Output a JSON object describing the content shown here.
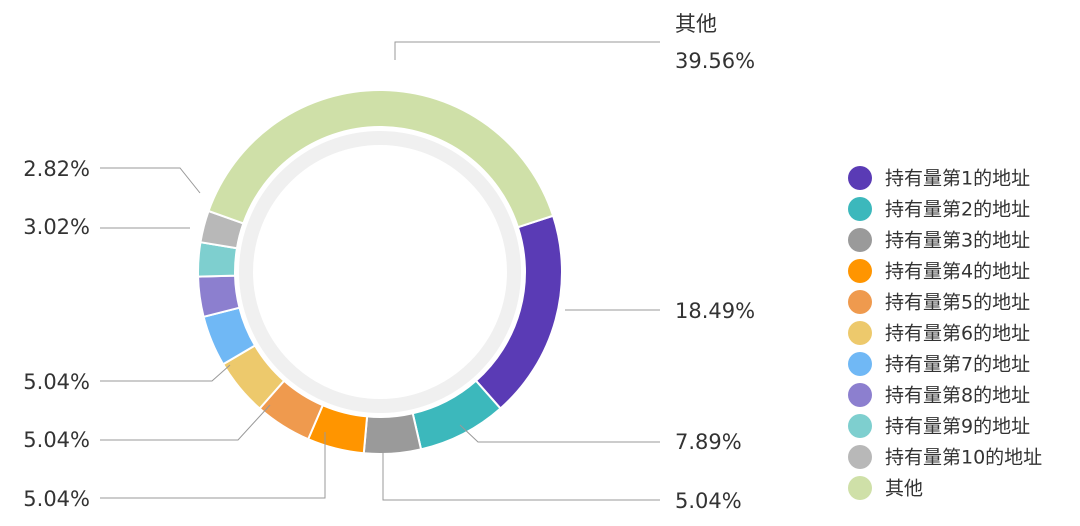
{
  "chart_data": {
    "type": "pie",
    "donut": true,
    "categories": [
      "持有量第1的地址",
      "持有量第2的地址",
      "持有量第3的地址",
      "持有量第4的地址",
      "持有量第5的地址",
      "持有量第6的地址",
      "持有量第7的地址",
      "持有量第8的地址",
      "持有量第9的地址",
      "持有量第10的地址",
      "其他"
    ],
    "values": [
      18.49,
      7.89,
      5.04,
      5.04,
      5.04,
      5.04,
      4.5,
      3.56,
      3.02,
      2.82,
      39.56
    ],
    "value_labels": [
      "18.49%",
      "7.89%",
      "5.04%",
      "5.04%",
      "5.04%",
      "5.04%",
      null,
      null,
      "3.02%",
      "2.82%",
      "39.56%"
    ],
    "colors": [
      "#5a3bb5",
      "#3cb8bc",
      "#9a9a9a",
      "#ff9500",
      "#ef9a4e",
      "#edc96c",
      "#70b8f5",
      "#8c7fcf",
      "#7ecfcf",
      "#b8b8b8",
      "#cfe0a8"
    ],
    "legend": "right"
  }
}
